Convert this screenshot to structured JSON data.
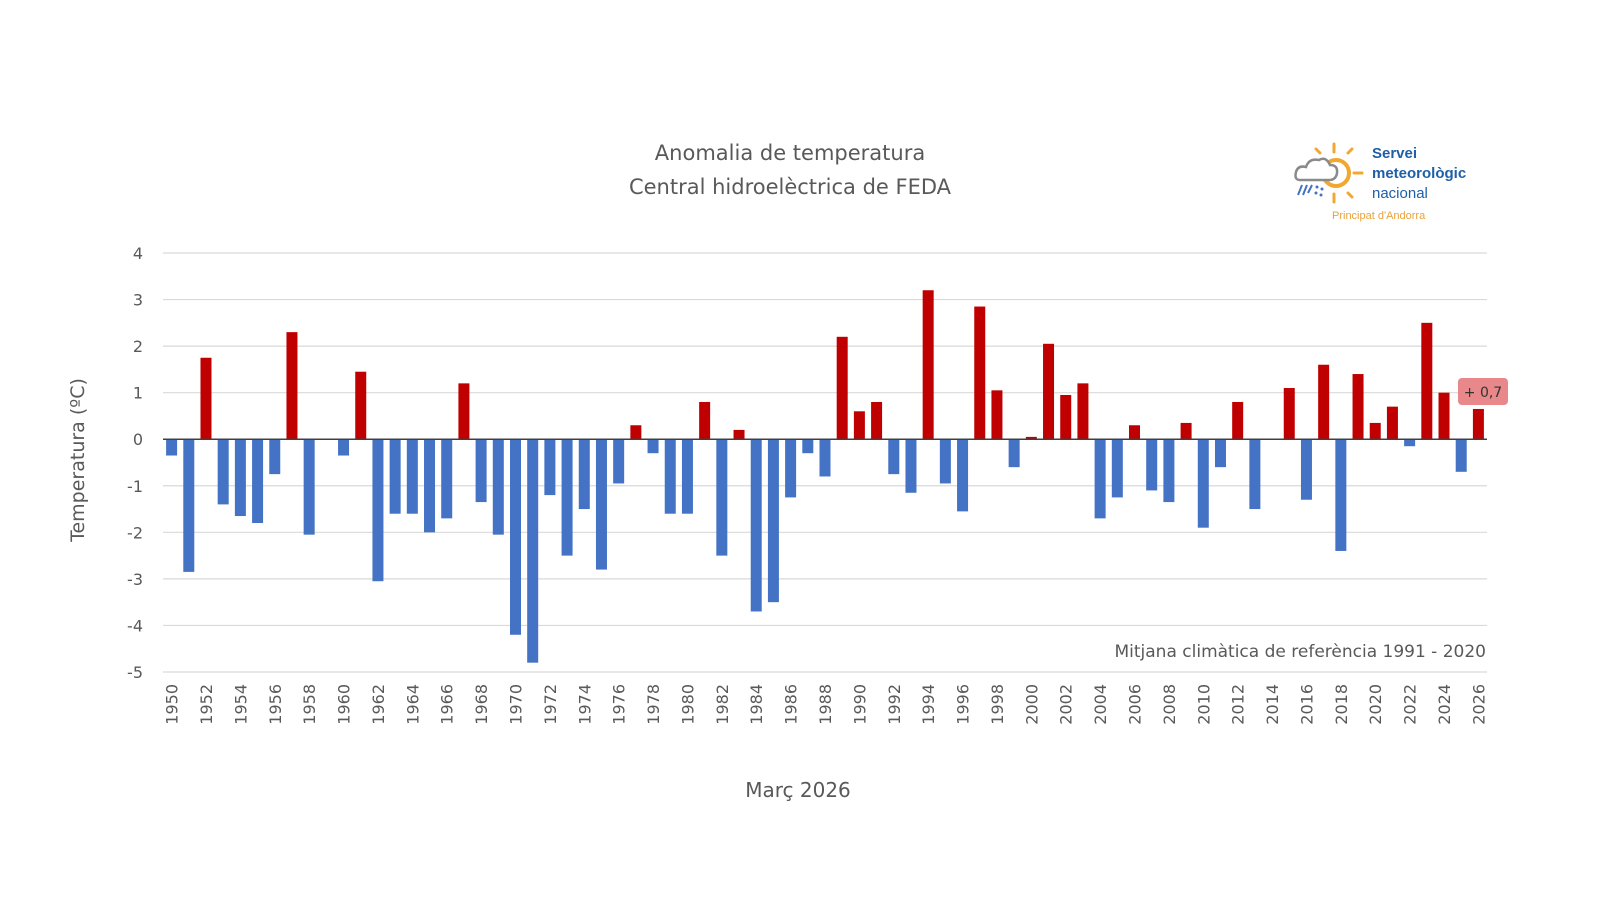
{
  "chart_data": {
    "type": "bar",
    "title": "Anomalia de temperatura",
    "subtitle": "Central hidroelèctrica de FEDA",
    "xlabel": "Març 2026",
    "ylabel": "Temperatura (ºC)",
    "ylim": [
      -5,
      4
    ],
    "yticks": [
      4,
      3,
      2,
      1,
      0,
      -1,
      -2,
      -3,
      -4,
      -5
    ],
    "grid": true,
    "annotation": "Mitjana climàtica de referència 1991 - 2020",
    "last_value_label": "+ 0,7",
    "colors": {
      "positive": "#c00000",
      "negative": "#4472c4",
      "label_bg": "#e8888a"
    },
    "categories": [
      1950,
      1951,
      1952,
      1953,
      1954,
      1955,
      1956,
      1957,
      1958,
      1959,
      1960,
      1961,
      1962,
      1963,
      1964,
      1965,
      1966,
      1967,
      1968,
      1969,
      1970,
      1971,
      1972,
      1973,
      1974,
      1975,
      1976,
      1977,
      1978,
      1979,
      1980,
      1981,
      1982,
      1983,
      1984,
      1985,
      1986,
      1987,
      1988,
      1989,
      1990,
      1991,
      1992,
      1993,
      1994,
      1995,
      1996,
      1997,
      1998,
      1999,
      2000,
      2001,
      2002,
      2003,
      2004,
      2005,
      2006,
      2007,
      2008,
      2009,
      2010,
      2011,
      2012,
      2013,
      2014,
      2015,
      2016,
      2017,
      2018,
      2019,
      2020,
      2021,
      2022,
      2023,
      2024,
      2025,
      2026
    ],
    "values": [
      -0.35,
      -2.85,
      1.75,
      -1.4,
      -1.65,
      -1.8,
      -0.75,
      2.3,
      -2.05,
      0,
      -0.35,
      1.45,
      -3.05,
      -1.6,
      -1.6,
      -2.0,
      -1.7,
      1.2,
      -1.35,
      -2.05,
      -4.2,
      -4.8,
      -1.2,
      -2.5,
      -1.5,
      -2.8,
      -0.95,
      0.3,
      -0.3,
      -1.6,
      -1.6,
      0.8,
      -2.5,
      0.2,
      -3.7,
      -3.5,
      -1.25,
      -0.3,
      -0.8,
      2.2,
      0.6,
      0.8,
      -0.75,
      -1.15,
      3.2,
      -0.95,
      -1.55,
      2.85,
      1.05,
      -0.6,
      0.05,
      2.05,
      0.95,
      1.2,
      -1.7,
      -1.25,
      0.3,
      -1.1,
      -1.35,
      0.35,
      -1.9,
      -0.6,
      0.8,
      -1.5,
      0,
      1.1,
      -1.3,
      1.6,
      -2.4,
      1.4,
      0.35,
      0.7,
      -0.15,
      2.5,
      1.0,
      -0.7,
      0.65
    ],
    "xtick_labels": [
      "1950",
      "1952",
      "1954",
      "1956",
      "1958",
      "1960",
      "1962",
      "1964",
      "1966",
      "1968",
      "1970",
      "1972",
      "1974",
      "1976",
      "1978",
      "1980",
      "1982",
      "1984",
      "1986",
      "1988",
      "1990",
      "1992",
      "1994",
      "1996",
      "1998",
      "2000",
      "2002",
      "2004",
      "2006",
      "2008",
      "2010",
      "2012",
      "2014",
      "2016",
      "2018",
      "2020",
      "2022",
      "2024",
      "2026"
    ]
  },
  "logo": {
    "line1": "Servei",
    "line2": "meteorològic",
    "line3": "nacional",
    "sub": "Principat d'Andorra",
    "icon": "sun-cloud-rain-icon"
  }
}
